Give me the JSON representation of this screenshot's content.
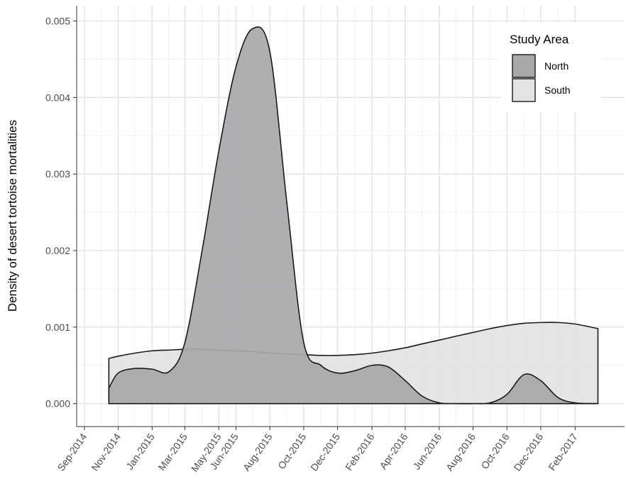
{
  "chart_data": {
    "type": "area",
    "title": "",
    "xlabel": "",
    "ylabel": "Density of desert tortoise mortalities",
    "x_type": "date",
    "xlim": [
      "2014-08-18",
      "2017-05-01"
    ],
    "ylim": [
      -0.0003,
      0.0052
    ],
    "x_ticks": [
      "2014-09-01",
      "2014-11-01",
      "2015-01-01",
      "2015-03-01",
      "2015-05-01",
      "2015-06-01",
      "2015-08-01",
      "2015-10-01",
      "2015-12-01",
      "2016-02-01",
      "2016-04-01",
      "2016-06-01",
      "2016-08-01",
      "2016-10-01",
      "2016-12-01",
      "2017-02-01"
    ],
    "x_tick_labels": [
      "Sep-2014",
      "Nov-2014",
      "Jan-2015",
      "Mar-2015",
      "May-2015",
      "Jun-2015",
      "Aug-2015",
      "Oct-2015",
      "Dec-2015",
      "Feb-2016",
      "Apr-2016",
      "Jun-2016",
      "Aug-2016",
      "Oct-2016",
      "Dec-2016",
      "Feb-2017"
    ],
    "y_ticks": [
      0.0,
      0.001,
      0.002,
      0.003,
      0.004,
      0.005
    ],
    "y_tick_labels": [
      "0.000",
      "0.001",
      "0.002",
      "0.003",
      "0.004",
      "0.005"
    ],
    "grid": true,
    "legend": {
      "title": "Study Area",
      "placement": "top-right"
    },
    "series": [
      {
        "name": "South",
        "fill": "#e3e3e5",
        "stroke": "#1a1a1a",
        "x": [
          "2014-10-15",
          "2014-11-01",
          "2014-12-01",
          "2015-01-01",
          "2015-02-01",
          "2015-03-01",
          "2015-04-01",
          "2015-05-01",
          "2015-06-01",
          "2015-07-01",
          "2015-08-01",
          "2015-09-01",
          "2015-10-01",
          "2015-11-01",
          "2015-12-01",
          "2016-01-01",
          "2016-02-01",
          "2016-03-01",
          "2016-04-01",
          "2016-05-01",
          "2016-06-01",
          "2016-07-01",
          "2016-08-01",
          "2016-09-01",
          "2016-10-01",
          "2016-11-01",
          "2016-12-01",
          "2017-01-01",
          "2017-02-01",
          "2017-03-14"
        ],
        "values": [
          0.00059,
          0.00062,
          0.00066,
          0.00069,
          0.0007,
          0.00071,
          0.00071,
          0.0007,
          0.00069,
          0.00068,
          0.00066,
          0.00065,
          0.00064,
          0.00063,
          0.00063,
          0.00064,
          0.00066,
          0.00069,
          0.00073,
          0.00078,
          0.00083,
          0.00088,
          0.00093,
          0.00098,
          0.00102,
          0.00105,
          0.00106,
          0.00106,
          0.00104,
          0.00098
        ]
      },
      {
        "name": "North",
        "fill": "#a8a8ab",
        "stroke": "#1a1a1a",
        "x": [
          "2014-10-15",
          "2014-11-01",
          "2014-12-01",
          "2015-01-01",
          "2015-02-01",
          "2015-03-01",
          "2015-04-01",
          "2015-05-01",
          "2015-06-01",
          "2015-07-01",
          "2015-08-01",
          "2015-09-01",
          "2015-10-01",
          "2015-11-01",
          "2015-12-01",
          "2016-01-01",
          "2016-02-01",
          "2016-03-01",
          "2016-04-01",
          "2016-05-01",
          "2016-06-01",
          "2016-07-01",
          "2016-08-01",
          "2016-09-01",
          "2016-10-01",
          "2016-11-01",
          "2016-12-01",
          "2017-01-01",
          "2017-02-01",
          "2017-03-14"
        ],
        "values": [
          0.0002,
          0.0004,
          0.00046,
          0.00045,
          0.00042,
          0.0008,
          0.002,
          0.0033,
          0.0044,
          0.0049,
          0.0046,
          0.0026,
          0.0008,
          0.0005,
          0.0004,
          0.00043,
          0.0005,
          0.00048,
          0.0003,
          0.0001,
          1e-05,
          0.0,
          0.0,
          1e-05,
          0.00012,
          0.00038,
          0.0003,
          8e-05,
          1e-05,
          0.0
        ]
      }
    ]
  }
}
